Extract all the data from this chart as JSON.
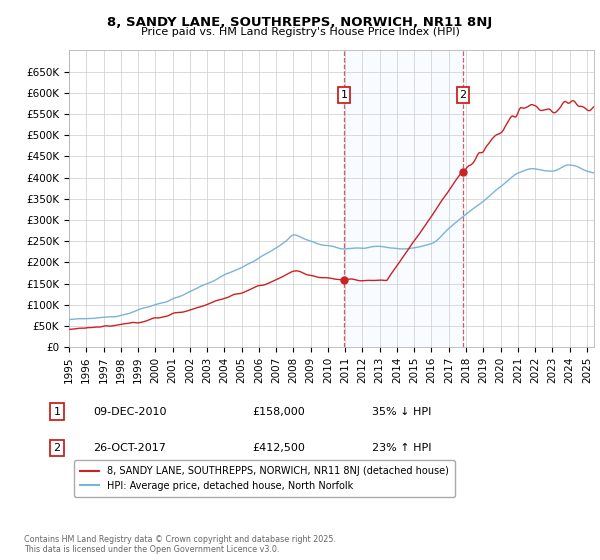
{
  "title": "8, SANDY LANE, SOUTHREPPS, NORWICH, NR11 8NJ",
  "subtitle": "Price paid vs. HM Land Registry's House Price Index (HPI)",
  "hpi_color": "#7ab4d8",
  "property_color": "#cc2222",
  "vline_color": "#cc4444",
  "shade_color": "#ddeeff",
  "annotation_box_color": "#cc2222",
  "legend_label_property": "8, SANDY LANE, SOUTHREPPS, NORWICH, NR11 8NJ (detached house)",
  "legend_label_hpi": "HPI: Average price, detached house, North Norfolk",
  "footnote1": "09-DEC-2010",
  "footnote1_price": "£158,000",
  "footnote1_hpi": "35% ↓ HPI",
  "footnote2": "26-OCT-2017",
  "footnote2_price": "£412,500",
  "footnote2_hpi": "23% ↑ HPI",
  "copyright": "Contains HM Land Registry data © Crown copyright and database right 2025.\nThis data is licensed under the Open Government Licence v3.0.",
  "ylim_min": 0,
  "ylim_max": 700000,
  "yticks": [
    0,
    50000,
    100000,
    150000,
    200000,
    250000,
    300000,
    350000,
    400000,
    450000,
    500000,
    550000,
    600000,
    650000
  ]
}
